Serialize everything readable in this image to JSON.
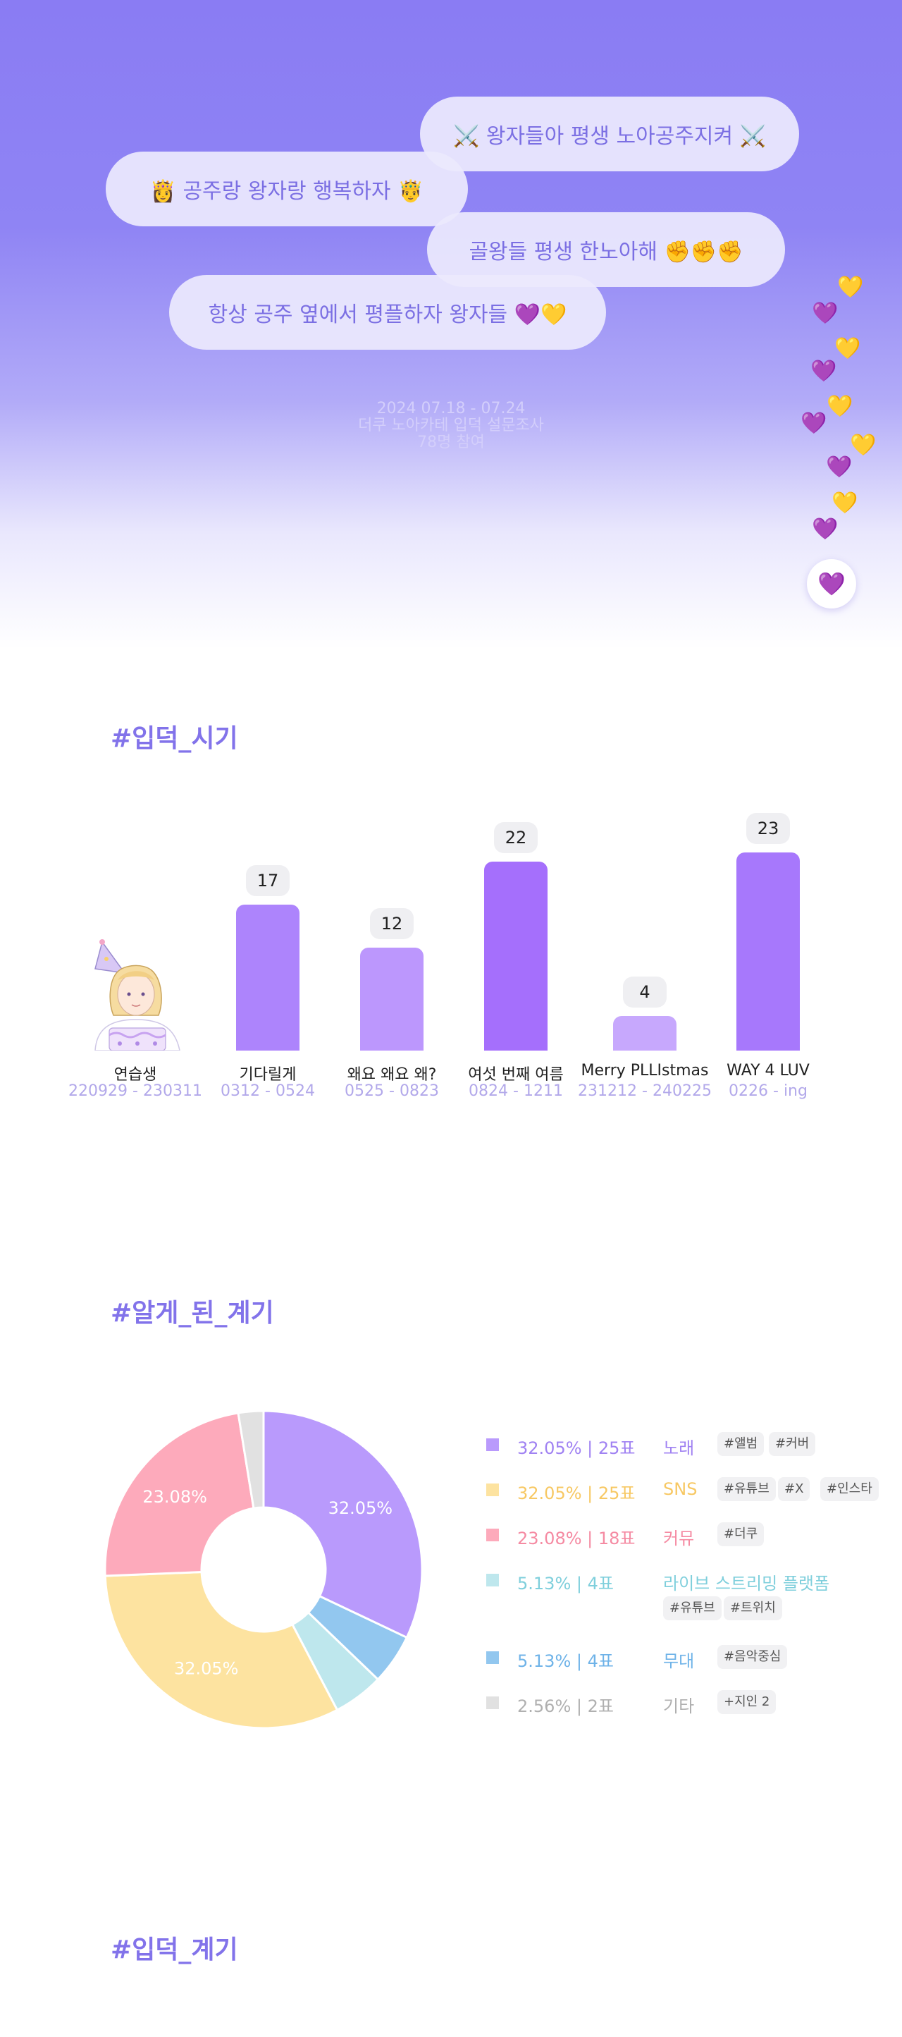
{
  "hero": {
    "bubbles": [
      "⚔️ 왕자들아 평생 노아공주지켜 ⚔️",
      "👸  공주랑 왕자랑 행복하자  🤴",
      "골왕들 평생 한노아해 ✊✊✊",
      "항상 공주 옆에서 평플하자 왕자들 💜💛"
    ],
    "survey_dates": "2024 07.18 - 07.24",
    "survey_title": "더쿠 노아카테 입덕 설문조사",
    "participants": "78명 참여",
    "floating_hearts": [
      "💛",
      "💜",
      "💛",
      "💜",
      "💛",
      "💜",
      "💛",
      "💜",
      "💛",
      "💜"
    ],
    "heart_button_icon": "💜"
  },
  "section_titles": {
    "entry_period": "#입덕_시기",
    "discovery": "#알게_된_계기",
    "entry_reason": "#입덕_계기"
  },
  "chart_data": [
    {
      "type": "bar",
      "title": "#입덕_시기",
      "categories": [
        "연습생",
        "기다릴게",
        "왜요 왜요 왜?",
        "여섯 번째 여름",
        "Merry PLLIstmas",
        "WAY 4 LUV"
      ],
      "ranges": [
        "220929 - 230311",
        "0312 - 0524",
        "0525 - 0823",
        "0824 - 1211",
        "231212 - 240225",
        "0226 - ing"
      ],
      "values": [
        null,
        17,
        12,
        22,
        4,
        23
      ],
      "colors": [
        "#cdbfff",
        "#ad84fc",
        "#bc97fd",
        "#a56ffc",
        "#c7a8fd",
        "#a778fc"
      ],
      "ylim": [
        0,
        25
      ],
      "first_category_illustration": "birthday-character"
    },
    {
      "type": "pie",
      "title": "#알게_된_계기",
      "labels": [
        "노래",
        "무대",
        "라이브 스트리밍 플랫폼",
        "SNS",
        "커뮤",
        "기타"
      ],
      "values": [
        32.05,
        5.13,
        5.13,
        32.05,
        23.08,
        2.56
      ],
      "colors": [
        "#b99afc",
        "#92c7ef",
        "#bee7ed",
        "#fde3a0",
        "#fdaabb",
        "#e1e1e1"
      ],
      "slice_labels": [
        "32.05%",
        "",
        "",
        "32.05%",
        "23.08%",
        ""
      ],
      "donut": true
    }
  ],
  "legend": [
    {
      "pct": "32.05% | 25표",
      "category": "노래",
      "tags": [
        "#앨범",
        "#커버"
      ],
      "color": "#b99afc",
      "text_color": "#a082f2"
    },
    {
      "pct": "32.05% | 25표",
      "category": "SNS",
      "tags": [
        "#유튜브",
        "#X",
        "#인스타"
      ],
      "color": "#fde3a0",
      "text_color": "#f7c863"
    },
    {
      "pct": "23.08% | 18표",
      "category": "커뮤",
      "tags": [
        "#더쿠"
      ],
      "color": "#fdaabb",
      "text_color": "#f58aa2"
    },
    {
      "pct": "5.13% | 4표",
      "category": "라이브 스트리밍 플랫폼",
      "tags": [
        "#유튜브",
        "#트위치"
      ],
      "color": "#bee7ed",
      "text_color": "#7fcfdc"
    },
    {
      "pct": "5.13% | 4표",
      "category": "무대",
      "tags": [
        "#음악중심"
      ],
      "color": "#92c7ef",
      "text_color": "#6fb3e8"
    },
    {
      "pct": "2.56% | 2표",
      "category": "기타",
      "tags": [
        "+지인 2"
      ],
      "color": "#e1e1e1",
      "text_color": "#b0b0b0"
    }
  ]
}
